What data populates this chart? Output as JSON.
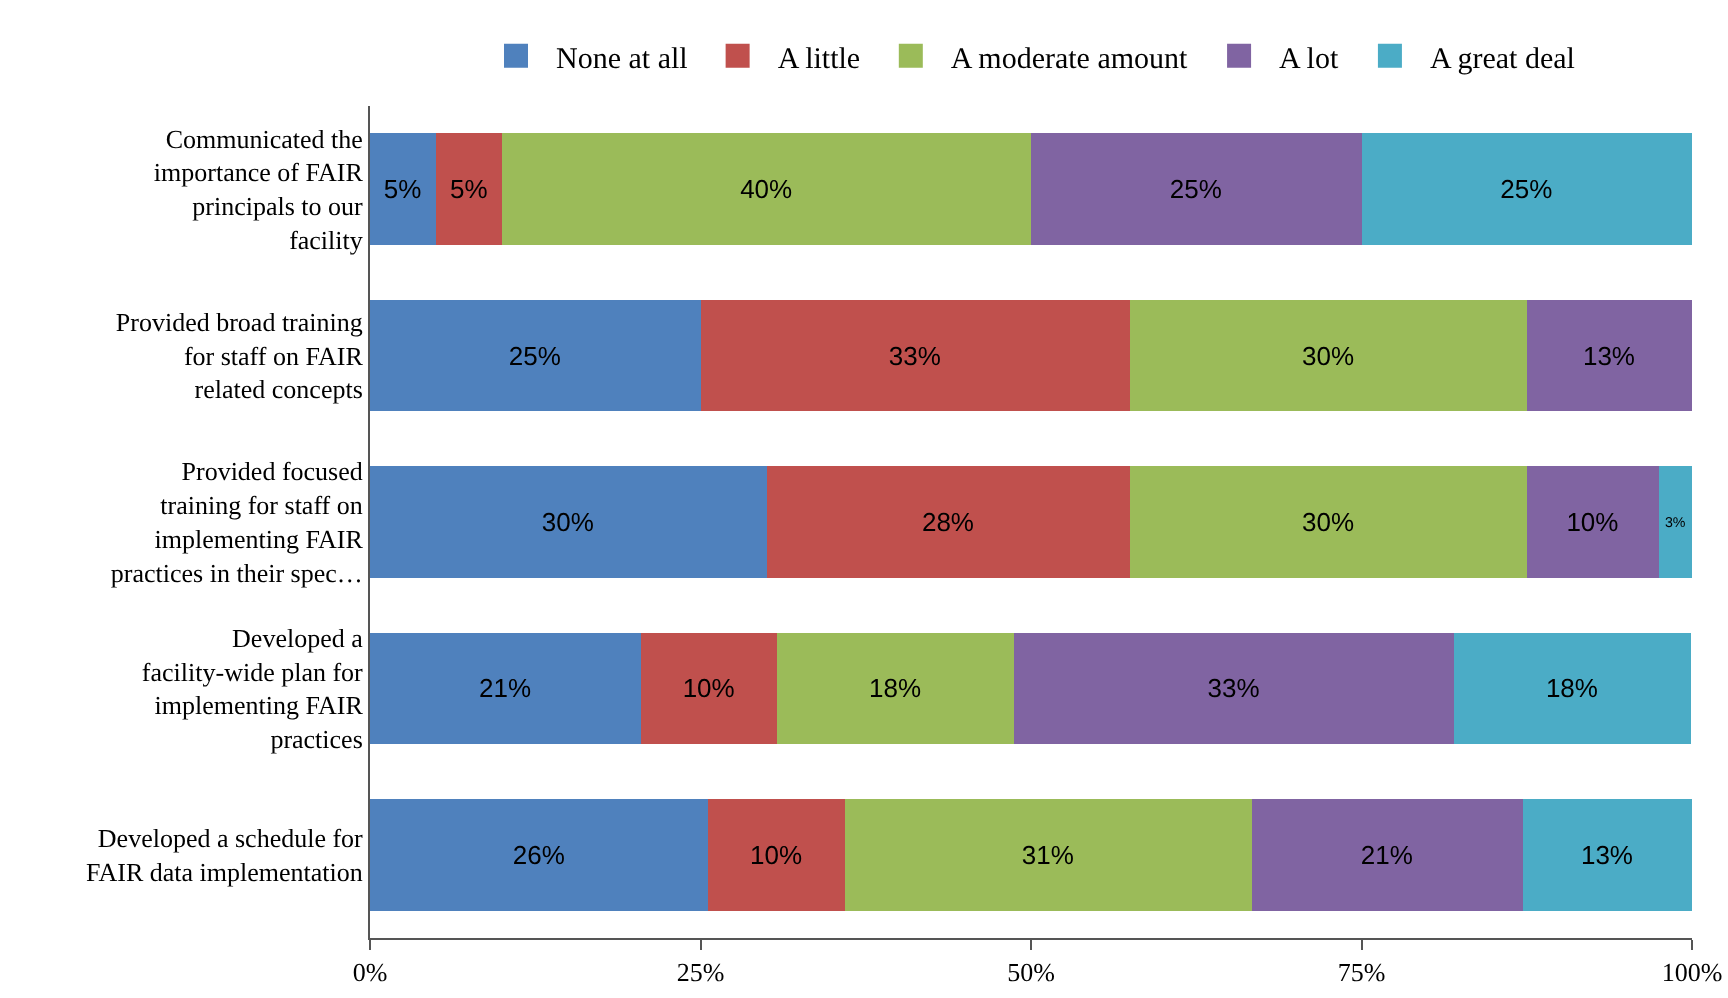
{
  "chart_data": {
    "type": "bar",
    "orientation": "horizontal",
    "stacked": true,
    "legend": "top",
    "grid": false,
    "categories": [
      "Communicated the importance of FAIR principals to our facility",
      "Provided broad training for staff on FAIR related concepts",
      "Provided focused training for staff on implementing FAIR practices in their spec…",
      "Developed a facility-wide plan for implementing FAIR practices",
      "Developed a schedule for FAIR data implementation"
    ],
    "xlim": [
      0,
      100
    ],
    "xticks": [
      {
        "value": 0,
        "label": "0%"
      },
      {
        "value": 25,
        "label": "25%"
      },
      {
        "value": 50,
        "label": "50%"
      },
      {
        "value": 75,
        "label": "75%"
      },
      {
        "value": 100,
        "label": "100%"
      }
    ],
    "series": [
      {
        "name": "None at all",
        "color": "#4f81bd",
        "values": [
          5,
          25,
          30,
          20.5,
          25.6
        ],
        "value_labels": [
          "5%",
          "25%",
          "30%",
          "21%",
          "26%"
        ]
      },
      {
        "name": "A little",
        "color": "#c0504d",
        "values": [
          5,
          32.5,
          27.5,
          10.3,
          10.3
        ],
        "value_labels": [
          "5%",
          "33%",
          "28%",
          "10%",
          "10%"
        ]
      },
      {
        "name": "A moderate amount",
        "color": "#9bbb59",
        "values": [
          40,
          30,
          30,
          17.9,
          30.8
        ],
        "value_labels": [
          "40%",
          "30%",
          "30%",
          "18%",
          "31%"
        ]
      },
      {
        "name": "A lot",
        "color": "#8064a2",
        "values": [
          25,
          12.5,
          10,
          33.3,
          20.5
        ],
        "value_labels": [
          "25%",
          "13%",
          "10%",
          "33%",
          "21%"
        ]
      },
      {
        "name": "A great deal",
        "color": "#4bacc6",
        "values": [
          25,
          null,
          2.5,
          17.9,
          12.8
        ],
        "value_labels": [
          "25%",
          null,
          "3%",
          "18%",
          "13%"
        ]
      }
    ]
  }
}
